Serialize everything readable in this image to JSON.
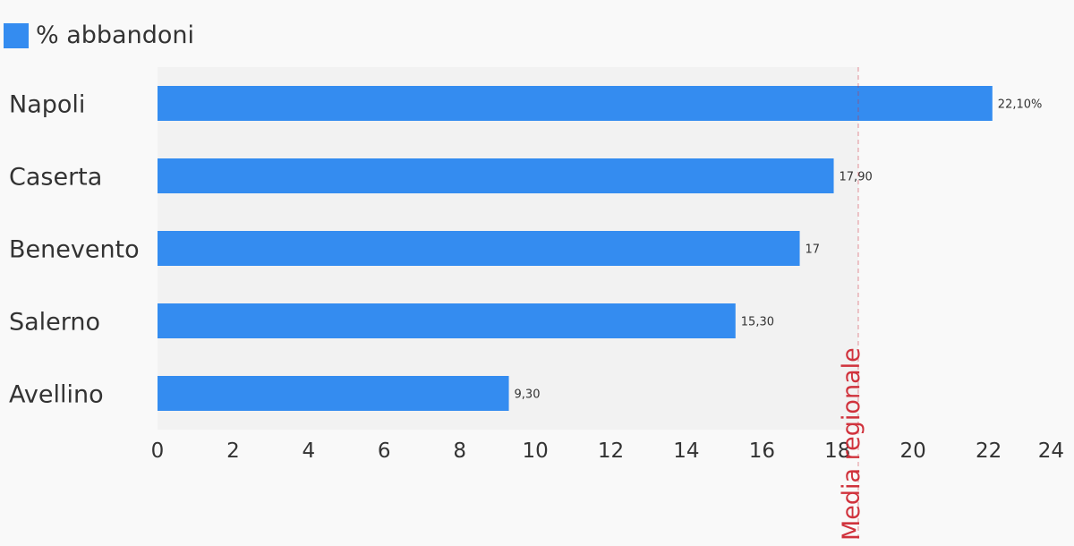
{
  "chart_data": {
    "type": "bar",
    "orientation": "horizontal",
    "categories": [
      "Napoli",
      "Caserta",
      "Benevento",
      "Salerno",
      "Avellino"
    ],
    "series": [
      {
        "name": "% abbandoni",
        "values": [
          22.1,
          17.9,
          17,
          15.3,
          9.3
        ],
        "data_labels": [
          "22,10%",
          "17,90",
          "17",
          "15,30",
          "9,30"
        ],
        "color": "#348cf0"
      }
    ],
    "xlim": [
      0,
      24
    ],
    "x_ticks": [
      0,
      2,
      4,
      6,
      8,
      10,
      12,
      14,
      16,
      18,
      20,
      22,
      24
    ],
    "legend_position": "top-left",
    "grid": false,
    "reference_line": {
      "label": "Media regionale",
      "value": 18.55,
      "color": "#d0323c",
      "style": "dashed"
    },
    "plot_background": "#f2f2f2"
  }
}
